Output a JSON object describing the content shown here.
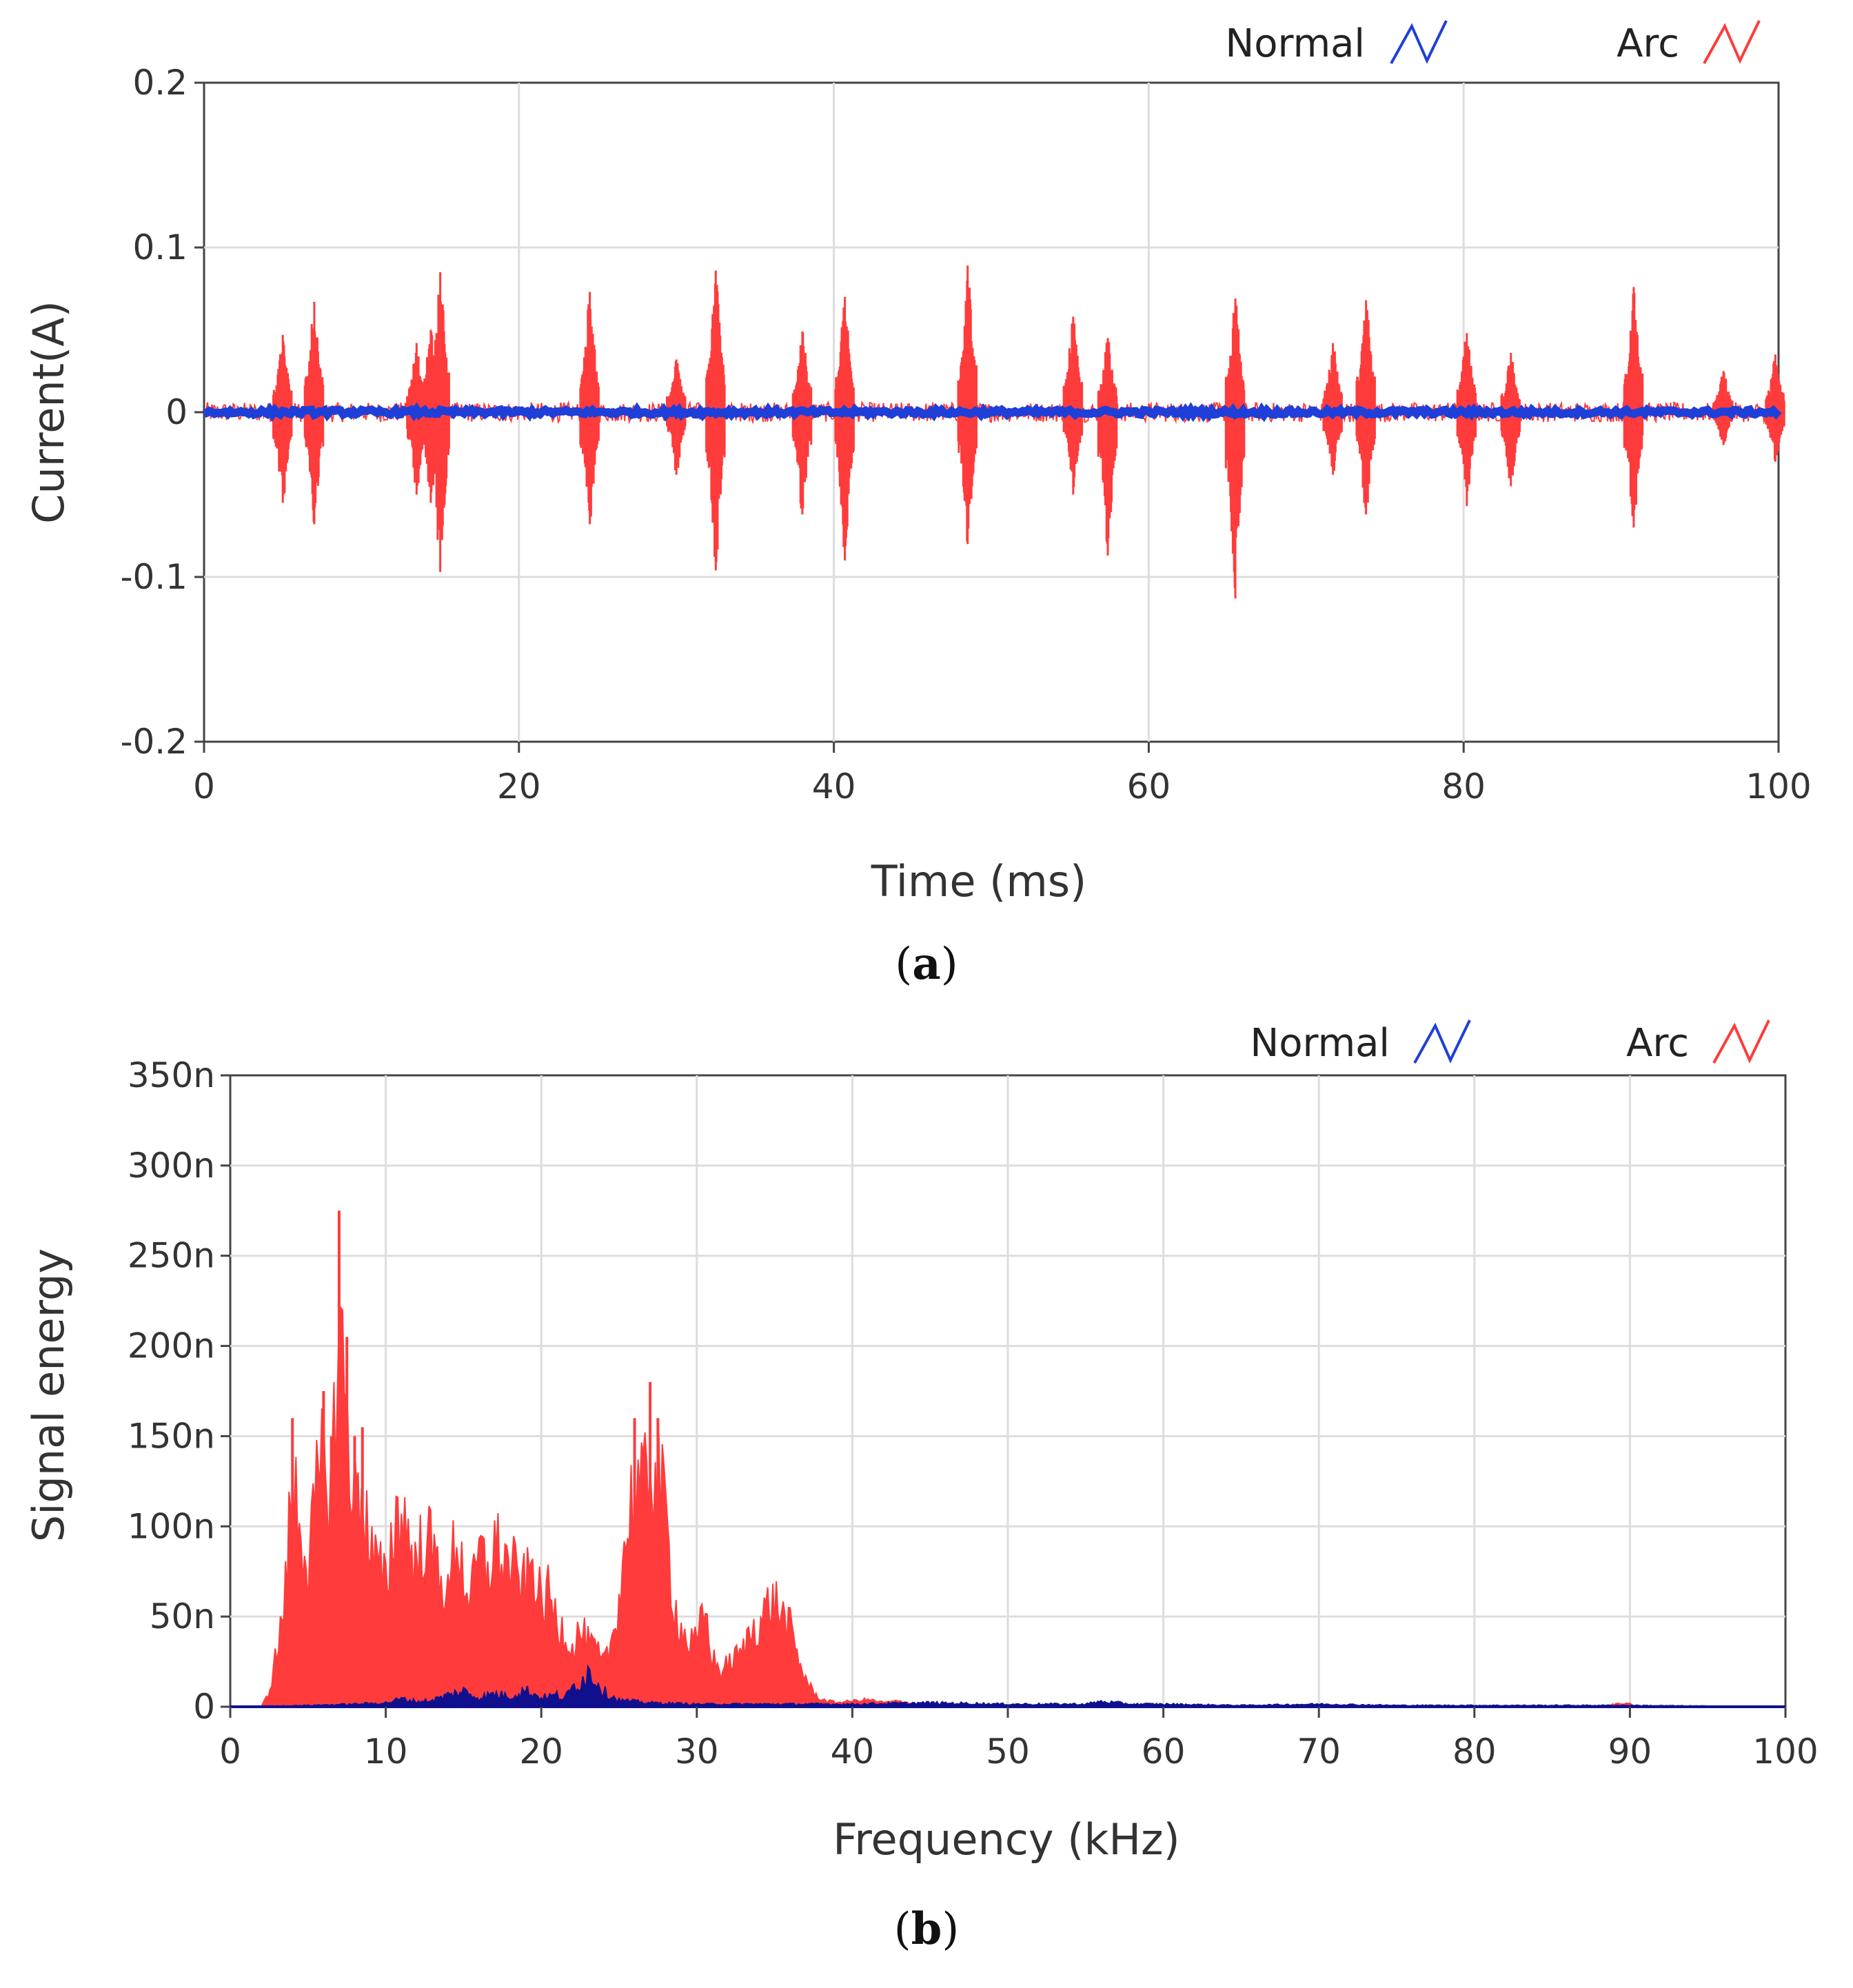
{
  "colors": {
    "normal": "#1f3fd9",
    "normal_dark": "#10108f",
    "arc": "#ff3b3b",
    "grid": "#dddddd",
    "axis": "#444444"
  },
  "chart_data": [
    {
      "panel": "a",
      "type": "line",
      "title": "",
      "xlabel": "Time (ms)",
      "ylabel": "Current(A)",
      "xlim": [
        0,
        100
      ],
      "ylim": [
        -0.2,
        0.2
      ],
      "xticks": [
        0,
        20,
        40,
        60,
        80,
        100
      ],
      "xtick_labels": [
        "0",
        "20",
        "40",
        "60",
        "80",
        "100"
      ],
      "yticks": [
        0.2,
        0.1,
        0,
        -0.1,
        -0.2
      ],
      "ytick_labels": [
        "0.2",
        "0.1",
        "0",
        "-0.1",
        "-0.2"
      ],
      "grid": true,
      "legend": [
        "Normal",
        "Arc"
      ],
      "legend_position": "top-right",
      "series": [
        {
          "name": "Normal",
          "baseline": 0,
          "noise_amplitude": 0.003
        },
        {
          "name": "Arc",
          "baseline": 0,
          "noise_amplitude": 0.006,
          "bursts": [
            {
              "t": 5.0,
              "pos": 0.047,
              "neg": -0.055
            },
            {
              "t": 7.0,
              "pos": 0.067,
              "neg": -0.068
            },
            {
              "t": 13.5,
              "pos": 0.042,
              "neg": -0.05
            },
            {
              "t": 14.4,
              "pos": 0.05,
              "neg": -0.055
            },
            {
              "t": 15.0,
              "pos": 0.085,
              "neg": -0.097
            },
            {
              "t": 24.5,
              "pos": 0.073,
              "neg": -0.068
            },
            {
              "t": 30.0,
              "pos": 0.032,
              "neg": -0.038
            },
            {
              "t": 32.5,
              "pos": 0.086,
              "neg": -0.096
            },
            {
              "t": 38.0,
              "pos": 0.049,
              "neg": -0.062
            },
            {
              "t": 40.7,
              "pos": 0.07,
              "neg": -0.09
            },
            {
              "t": 48.5,
              "pos": 0.089,
              "neg": -0.08
            },
            {
              "t": 55.2,
              "pos": 0.058,
              "neg": -0.05
            },
            {
              "t": 57.4,
              "pos": 0.045,
              "neg": -0.087
            },
            {
              "t": 65.5,
              "pos": 0.069,
              "neg": -0.113
            },
            {
              "t": 71.7,
              "pos": 0.042,
              "neg": -0.038
            },
            {
              "t": 73.8,
              "pos": 0.068,
              "neg": -0.062
            },
            {
              "t": 80.2,
              "pos": 0.048,
              "neg": -0.057
            },
            {
              "t": 83.0,
              "pos": 0.036,
              "neg": -0.045
            },
            {
              "t": 90.8,
              "pos": 0.076,
              "neg": -0.07
            },
            {
              "t": 96.5,
              "pos": 0.025,
              "neg": -0.02
            },
            {
              "t": 99.8,
              "pos": 0.035,
              "neg": -0.03
            }
          ]
        }
      ]
    },
    {
      "panel": "b",
      "type": "area",
      "title": "",
      "xlabel": "Frequency (kHz)",
      "ylabel": "Signal energy",
      "xlim": [
        0,
        100
      ],
      "ylim": [
        0,
        350
      ],
      "xticks": [
        0,
        10,
        20,
        30,
        40,
        50,
        60,
        70,
        80,
        90,
        100
      ],
      "xtick_labels": [
        "0",
        "10",
        "20",
        "30",
        "40",
        "50",
        "60",
        "70",
        "80",
        "90",
        "100"
      ],
      "yticks": [
        350,
        300,
        250,
        200,
        150,
        100,
        50,
        0
      ],
      "ytick_labels": [
        "350n",
        "300n",
        "250n",
        "200n",
        "150n",
        "100n",
        "50n",
        "0"
      ],
      "yunit": "n",
      "grid": true,
      "legend": [
        "Normal",
        "Arc"
      ],
      "legend_position": "top-right",
      "series": [
        {
          "name": "Arc",
          "x": [
            0,
            2,
            2.5,
            3,
            3.5,
            4,
            4.5,
            5,
            5.5,
            6,
            6.5,
            7,
            7.5,
            8,
            8.5,
            9,
            10,
            10.5,
            11,
            11.5,
            12,
            12.5,
            13,
            13.5,
            14,
            14.5,
            15,
            15.5,
            16,
            16.5,
            17,
            17.5,
            18,
            18.5,
            19,
            19.5,
            20,
            20.5,
            21,
            21.5,
            22,
            22.5,
            23,
            23.5,
            24,
            24.5,
            25,
            25.5,
            26,
            26.5,
            27,
            27.5,
            28,
            28.5,
            29,
            29.5,
            30,
            30.5,
            31,
            31.5,
            32,
            32.5,
            33,
            33.5,
            34,
            34.5,
            35,
            35.5,
            36,
            36.5,
            37,
            37.5,
            38,
            39,
            40,
            41,
            42,
            43,
            44,
            45,
            46,
            88.5,
            89,
            90,
            90.5,
            100
          ],
          "values": [
            0,
            0,
            10,
            40,
            75,
            160,
            135,
            95,
            145,
            175,
            150,
            275,
            205,
            150,
            155,
            110,
            85,
            130,
            140,
            120,
            95,
            130,
            105,
            100,
            75,
            125,
            95,
            75,
            110,
            95,
            115,
            105,
            100,
            90,
            85,
            105,
            70,
            80,
            60,
            55,
            40,
            55,
            45,
            40,
            30,
            45,
            80,
            125,
            160,
            145,
            180,
            160,
            135,
            75,
            55,
            45,
            45,
            70,
            35,
            25,
            30,
            35,
            40,
            55,
            60,
            70,
            75,
            65,
            55,
            35,
            20,
            10,
            5,
            3,
            4,
            5,
            3,
            4,
            2,
            1,
            0,
            0,
            2,
            2,
            0,
            0
          ]
        },
        {
          "name": "Normal",
          "x": [
            0,
            5,
            8,
            10,
            11,
            12,
            13,
            14,
            15,
            16,
            17,
            18,
            19,
            20,
            21,
            21.5,
            22,
            22.5,
            23,
            23.5,
            24,
            25,
            27,
            30,
            35,
            40,
            45,
            50,
            55,
            56,
            58,
            60,
            65,
            70,
            75,
            80,
            90,
            100
          ],
          "values": [
            0,
            1,
            2,
            3,
            6,
            4,
            5,
            9,
            12,
            7,
            10,
            8,
            13,
            7,
            9,
            6,
            15,
            20,
            27,
            22,
            12,
            5,
            3,
            2,
            2,
            2,
            3,
            2,
            2,
            4,
            2,
            2,
            1,
            2,
            1,
            1,
            1,
            0
          ]
        }
      ]
    }
  ],
  "panel_labels": {
    "a": "a",
    "b": "b"
  }
}
